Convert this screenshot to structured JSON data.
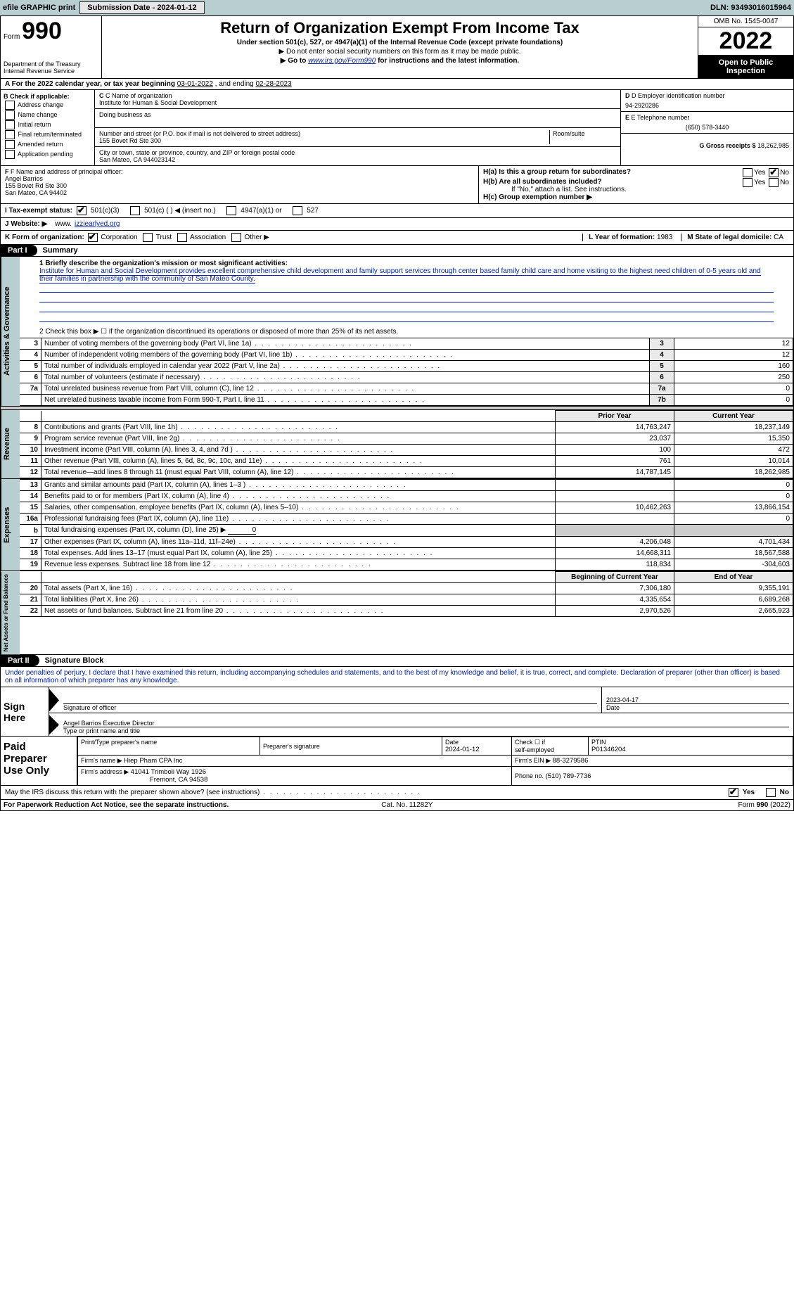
{
  "topbar": {
    "efile": "efile GRAPHIC print",
    "submission_btn": "Submission Date - 2024-01-12",
    "dln": "DLN: 93493016015964"
  },
  "header": {
    "form_word": "Form",
    "form_number": "990",
    "dept": "Department of the Treasury",
    "irs": "Internal Revenue Service",
    "title": "Return of Organization Exempt From Income Tax",
    "subtitle": "Under section 501(c), 527, or 4947(a)(1) of the Internal Revenue Code (except private foundations)",
    "note1": "▶ Do not enter social security numbers on this form as it may be made public.",
    "note2_pre": "▶ Go to ",
    "note2_link": "www.irs.gov/Form990",
    "note2_post": " for instructions and the latest information.",
    "omb": "OMB No. 1545-0047",
    "year": "2022",
    "open": "Open to Public Inspection"
  },
  "line_a": {
    "label": "A For the 2022 calendar year, or tax year beginning ",
    "begin": "03-01-2022",
    "mid": "   , and ending ",
    "end": "02-28-2023"
  },
  "b": {
    "hdr": "B Check if applicable:",
    "opts": [
      "Address change",
      "Name change",
      "Initial return",
      "Final return/terminated",
      "Amended return",
      "Application pending"
    ]
  },
  "c": {
    "label_name": "C Name of organization",
    "org": "Institute for Human & Social Development",
    "dba_label": "Doing business as",
    "addr_label": "Number and street (or P.O. box if mail is not delivered to street address)",
    "room_label": "Room/suite",
    "addr": "155 Bovet Rd Ste 300",
    "city_label": "City or town, state or province, country, and ZIP or foreign postal code",
    "city": "San Mateo, CA  944023142"
  },
  "d": {
    "label": "D Employer identification number",
    "ein": "94-2920286"
  },
  "e": {
    "label": "E Telephone number",
    "phone": "(650) 578-3440"
  },
  "g": {
    "label": "G Gross receipts $ ",
    "amount": "18,262,985"
  },
  "f": {
    "label": "F Name and address of principal officer:",
    "name": "Angel Barrios",
    "addr1": "155 Bovet Rd Ste 300",
    "addr2": "San Mateo, CA  94402"
  },
  "h": {
    "a": "H(a)  Is this a group return for subordinates?",
    "b": "H(b)  Are all subordinates included?",
    "b_note": "If \"No,\" attach a list. See instructions.",
    "c": "H(c)  Group exemption number ▶",
    "yes": "Yes",
    "no": "No"
  },
  "i": {
    "label": "I   Tax-exempt status:",
    "o501c3": "501(c)(3)",
    "o501c": "501(c) (    ) ◀ (insert no.)",
    "o4947": "4947(a)(1) or",
    "o527": "527"
  },
  "j": {
    "label": "J   Website: ▶",
    "site_prefix": "www.",
    "site": "izziearlyed.org"
  },
  "k": {
    "label": "K Form of organization:",
    "corp": "Corporation",
    "trust": "Trust",
    "assoc": "Association",
    "other": "Other ▶"
  },
  "l": {
    "label": "L Year of formation: ",
    "val": "1983"
  },
  "m": {
    "label": "M State of legal domicile: ",
    "val": "CA"
  },
  "part1": {
    "tag": "Part I",
    "title": "Summary"
  },
  "vtabs": {
    "gov": "Activities & Governance",
    "rev": "Revenue",
    "exp": "Expenses",
    "net": "Net Assets or Fund Balances"
  },
  "s1": {
    "label": "1  Briefly describe the organization's mission or most significant activities:",
    "text": "Institute for Human and Social Development provides excellent comprehensive child development and family support services through center based family child care and home visiting to the highest need children of 0-5 years old and their families in partnership with the community of San Mateo County."
  },
  "s2": "2    Check this box ▶ ☐ if the organization discontinued its operations or disposed of more than 25% of its net assets.",
  "govrows": [
    {
      "n": "3",
      "t": "Number of voting members of the governing body (Part VI, line 1a)",
      "b": "3",
      "v": "12"
    },
    {
      "n": "4",
      "t": "Number of independent voting members of the governing body (Part VI, line 1b)",
      "b": "4",
      "v": "12"
    },
    {
      "n": "5",
      "t": "Total number of individuals employed in calendar year 2022 (Part V, line 2a)",
      "b": "5",
      "v": "160"
    },
    {
      "n": "6",
      "t": "Total number of volunteers (estimate if necessary)",
      "b": "6",
      "v": "250"
    },
    {
      "n": "7a",
      "t": "Total unrelated business revenue from Part VIII, column (C), line 12",
      "b": "7a",
      "v": "0"
    },
    {
      "n": "",
      "t": "Net unrelated business taxable income from Form 990-T, Part I, line 11",
      "b": "7b",
      "v": "0"
    }
  ],
  "colhdr": {
    "prior": "Prior Year",
    "current": "Current Year"
  },
  "revrows": [
    {
      "n": "8",
      "t": "Contributions and grants (Part VIII, line 1h)",
      "p": "14,763,247",
      "c": "18,237,149"
    },
    {
      "n": "9",
      "t": "Program service revenue (Part VIII, line 2g)",
      "p": "23,037",
      "c": "15,350"
    },
    {
      "n": "10",
      "t": "Investment income (Part VIII, column (A), lines 3, 4, and 7d )",
      "p": "100",
      "c": "472"
    },
    {
      "n": "11",
      "t": "Other revenue (Part VIII, column (A), lines 5, 6d, 8c, 9c, 10c, and 11e)",
      "p": "761",
      "c": "10,014"
    },
    {
      "n": "12",
      "t": "Total revenue—add lines 8 through 11 (must equal Part VIII, column (A), line 12)",
      "p": "14,787,145",
      "c": "18,262,985"
    }
  ],
  "exprows": [
    {
      "n": "13",
      "t": "Grants and similar amounts paid (Part IX, column (A), lines 1–3 )",
      "p": "",
      "c": "0"
    },
    {
      "n": "14",
      "t": "Benefits paid to or for members (Part IX, column (A), line 4)",
      "p": "",
      "c": "0"
    },
    {
      "n": "15",
      "t": "Salaries, other compensation, employee benefits (Part IX, column (A), lines 5–10)",
      "p": "10,462,263",
      "c": "13,866,154"
    },
    {
      "n": "16a",
      "t": "Professional fundraising fees (Part IX, column (A), line 11e)",
      "p": "",
      "c": "0"
    }
  ],
  "exp_b": {
    "n": "b",
    "t": "Total fundraising expenses (Part IX, column (D), line 25) ▶",
    "v": "0"
  },
  "exprows2": [
    {
      "n": "17",
      "t": "Other expenses (Part IX, column (A), lines 11a–11d, 11f–24e)",
      "p": "4,206,048",
      "c": "4,701,434"
    },
    {
      "n": "18",
      "t": "Total expenses. Add lines 13–17 (must equal Part IX, column (A), line 25)",
      "p": "14,668,311",
      "c": "18,567,588"
    },
    {
      "n": "19",
      "t": "Revenue less expenses. Subtract line 18 from line 12",
      "p": "118,834",
      "c": "-304,603"
    }
  ],
  "netcolhdr": {
    "begin": "Beginning of Current Year",
    "end": "End of Year"
  },
  "netrows": [
    {
      "n": "20",
      "t": "Total assets (Part X, line 16)",
      "p": "7,306,180",
      "c": "9,355,191"
    },
    {
      "n": "21",
      "t": "Total liabilities (Part X, line 26)",
      "p": "4,335,654",
      "c": "6,689,268"
    },
    {
      "n": "22",
      "t": "Net assets or fund balances. Subtract line 21 from line 20",
      "p": "2,970,526",
      "c": "2,665,923"
    }
  ],
  "part2": {
    "tag": "Part II",
    "title": "Signature Block"
  },
  "perjury": "Under penalties of perjury, I declare that I have examined this return, including accompanying schedules and statements, and to the best of my knowledge and belief, it is true, correct, and complete. Declaration of preparer (other than officer) is based on all information of which preparer has any knowledge.",
  "sign": {
    "here1": "Sign",
    "here2": "Here",
    "sig_label": "Signature of officer",
    "date": "2023-04-17",
    "date_label": "Date",
    "name": "Angel Barrios  Executive Director",
    "name_label": "Type or print name and title"
  },
  "prep": {
    "h1": "Paid",
    "h2": "Preparer",
    "h3": "Use Only",
    "c1": "Print/Type preparer's name",
    "c2": "Preparer's signature",
    "c3": "Date",
    "c3v": "2024-01-12",
    "c4a": "Check ☐ if",
    "c4b": "self-employed",
    "c5": "PTIN",
    "c5v": "P01346204",
    "firm_label": "Firm's name    ▶ ",
    "firm": "Hiep Pham CPA Inc",
    "ein_label": "Firm's EIN ▶ ",
    "ein": "88-3279586",
    "addr_label": "Firm's address ▶ ",
    "addr1": "41041 Trimboli Way 1926",
    "addr2": "Fremont, CA  94538",
    "phone_label": "Phone no. ",
    "phone": "(510) 789-7736"
  },
  "may": {
    "text": "May the IRS discuss this return with the preparer shown above? (see instructions)",
    "yes": "Yes",
    "no": "No"
  },
  "footer": {
    "left": "For Paperwork Reduction Act Notice, see the separate instructions.",
    "cat": "Cat. No. 11282Y",
    "right": "Form 990 (2022)"
  }
}
